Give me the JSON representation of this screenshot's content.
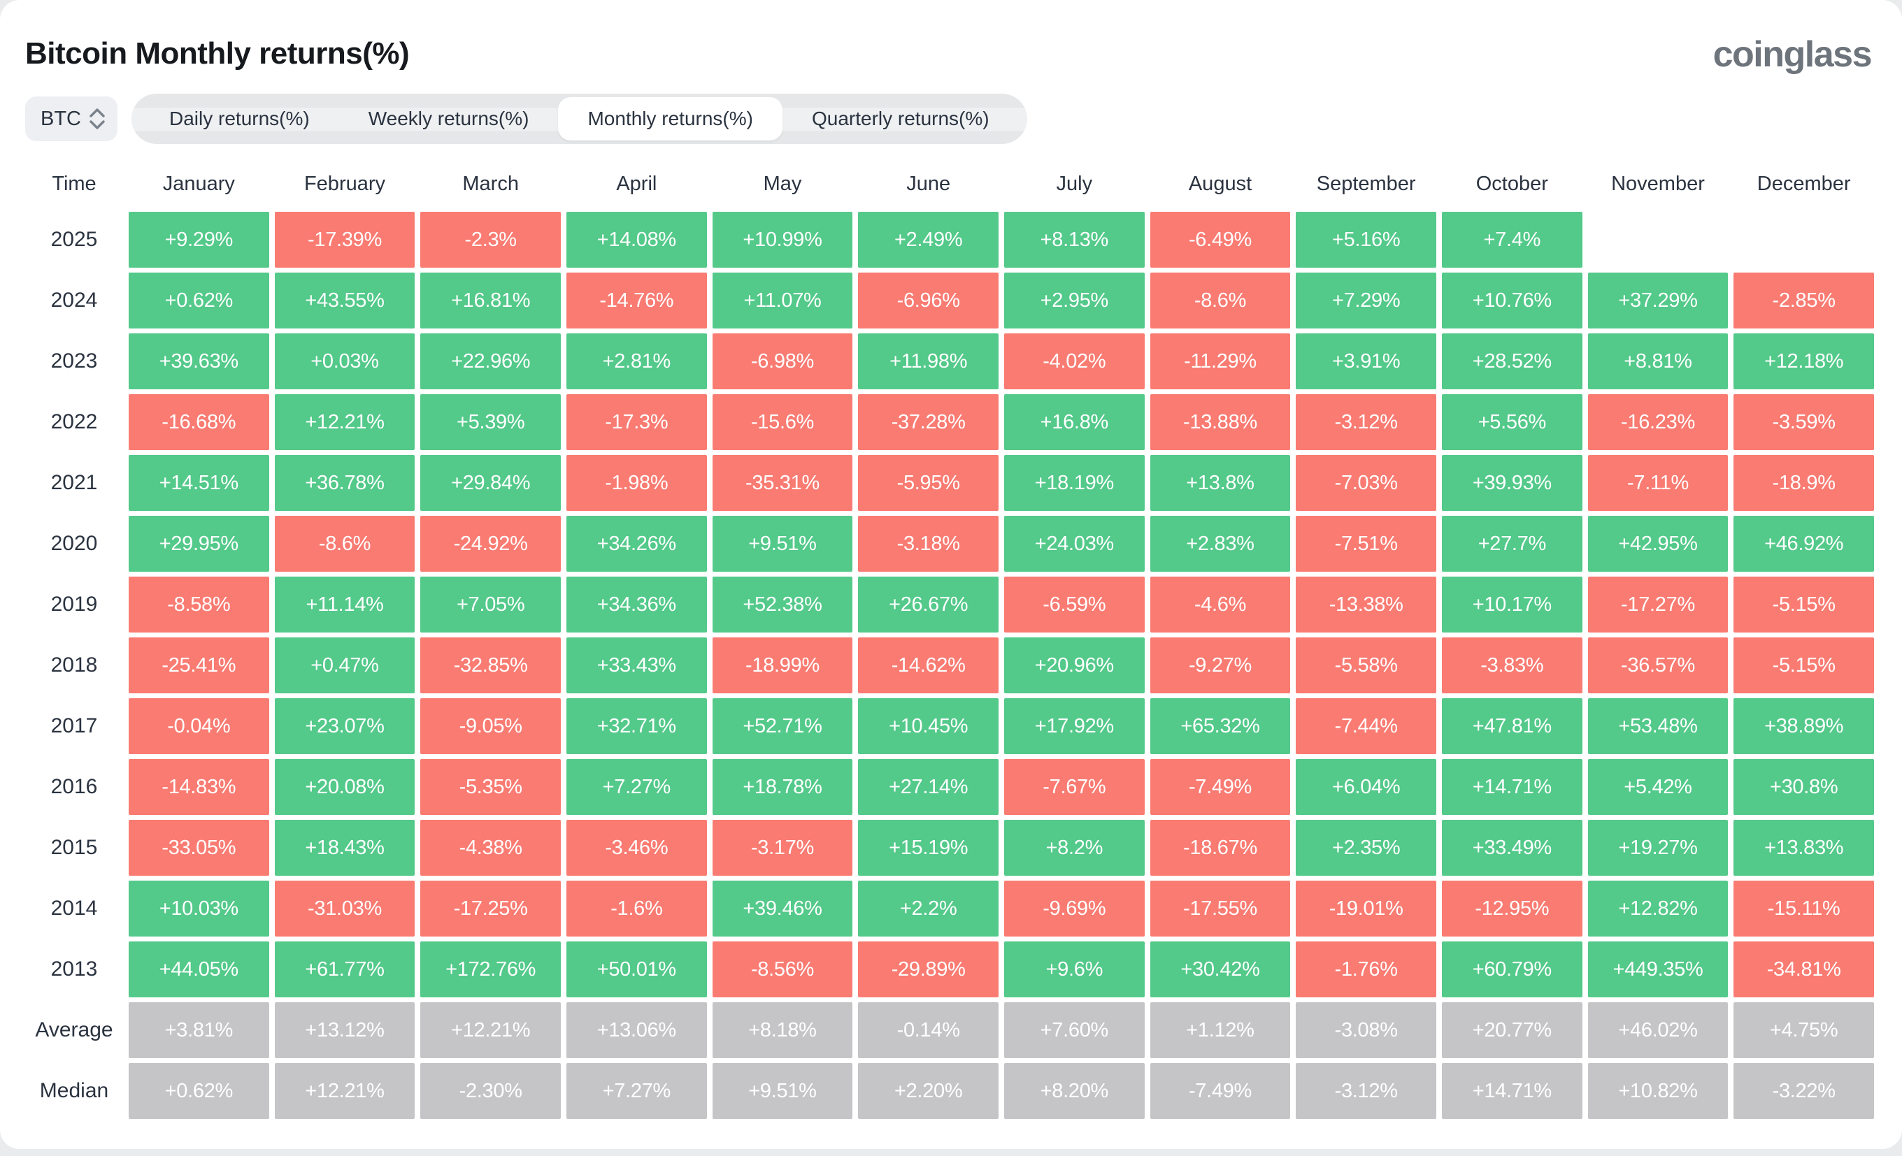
{
  "header": {
    "title": "Bitcoin Monthly returns(%)",
    "logo": "coinglass"
  },
  "controls": {
    "coin": "BTC",
    "tabs": [
      {
        "label": "Daily returns(%)",
        "active": false
      },
      {
        "label": "Weekly returns(%)",
        "active": false
      },
      {
        "label": "Monthly returns(%)",
        "active": true
      },
      {
        "label": "Quarterly returns(%)",
        "active": false
      }
    ]
  },
  "colors": {
    "positive": "#53c98a",
    "negative": "#f97b72",
    "neutral": "#c5c5c7"
  },
  "table": {
    "time_header": "Time",
    "months": [
      "January",
      "February",
      "March",
      "April",
      "May",
      "June",
      "July",
      "August",
      "September",
      "October",
      "November",
      "December"
    ],
    "rows": [
      {
        "label": "2025",
        "cells": [
          [
            "+9.29%",
            "p"
          ],
          [
            "-17.39%",
            "n"
          ],
          [
            "-2.3%",
            "n"
          ],
          [
            "+14.08%",
            "p"
          ],
          [
            "+10.99%",
            "p"
          ],
          [
            "+2.49%",
            "p"
          ],
          [
            "+8.13%",
            "p"
          ],
          [
            "-6.49%",
            "n"
          ],
          [
            "+5.16%",
            "p"
          ],
          [
            "+7.4%",
            "p"
          ],
          [
            "",
            "e"
          ],
          [
            "",
            "e"
          ]
        ]
      },
      {
        "label": "2024",
        "cells": [
          [
            "+0.62%",
            "p"
          ],
          [
            "+43.55%",
            "p"
          ],
          [
            "+16.81%",
            "p"
          ],
          [
            "-14.76%",
            "n"
          ],
          [
            "+11.07%",
            "p"
          ],
          [
            "-6.96%",
            "n"
          ],
          [
            "+2.95%",
            "p"
          ],
          [
            "-8.6%",
            "n"
          ],
          [
            "+7.29%",
            "p"
          ],
          [
            "+10.76%",
            "p"
          ],
          [
            "+37.29%",
            "p"
          ],
          [
            "-2.85%",
            "n"
          ]
        ]
      },
      {
        "label": "2023",
        "cells": [
          [
            "+39.63%",
            "p"
          ],
          [
            "+0.03%",
            "p"
          ],
          [
            "+22.96%",
            "p"
          ],
          [
            "+2.81%",
            "p"
          ],
          [
            "-6.98%",
            "n"
          ],
          [
            "+11.98%",
            "p"
          ],
          [
            "-4.02%",
            "n"
          ],
          [
            "-11.29%",
            "n"
          ],
          [
            "+3.91%",
            "p"
          ],
          [
            "+28.52%",
            "p"
          ],
          [
            "+8.81%",
            "p"
          ],
          [
            "+12.18%",
            "p"
          ]
        ]
      },
      {
        "label": "2022",
        "cells": [
          [
            "-16.68%",
            "n"
          ],
          [
            "+12.21%",
            "p"
          ],
          [
            "+5.39%",
            "p"
          ],
          [
            "-17.3%",
            "n"
          ],
          [
            "-15.6%",
            "n"
          ],
          [
            "-37.28%",
            "n"
          ],
          [
            "+16.8%",
            "p"
          ],
          [
            "-13.88%",
            "n"
          ],
          [
            "-3.12%",
            "n"
          ],
          [
            "+5.56%",
            "p"
          ],
          [
            "-16.23%",
            "n"
          ],
          [
            "-3.59%",
            "n"
          ]
        ]
      },
      {
        "label": "2021",
        "cells": [
          [
            "+14.51%",
            "p"
          ],
          [
            "+36.78%",
            "p"
          ],
          [
            "+29.84%",
            "p"
          ],
          [
            "-1.98%",
            "n"
          ],
          [
            "-35.31%",
            "n"
          ],
          [
            "-5.95%",
            "n"
          ],
          [
            "+18.19%",
            "p"
          ],
          [
            "+13.8%",
            "p"
          ],
          [
            "-7.03%",
            "n"
          ],
          [
            "+39.93%",
            "p"
          ],
          [
            "-7.11%",
            "n"
          ],
          [
            "-18.9%",
            "n"
          ]
        ]
      },
      {
        "label": "2020",
        "cells": [
          [
            "+29.95%",
            "p"
          ],
          [
            "-8.6%",
            "n"
          ],
          [
            "-24.92%",
            "n"
          ],
          [
            "+34.26%",
            "p"
          ],
          [
            "+9.51%",
            "p"
          ],
          [
            "-3.18%",
            "n"
          ],
          [
            "+24.03%",
            "p"
          ],
          [
            "+2.83%",
            "p"
          ],
          [
            "-7.51%",
            "n"
          ],
          [
            "+27.7%",
            "p"
          ],
          [
            "+42.95%",
            "p"
          ],
          [
            "+46.92%",
            "p"
          ]
        ]
      },
      {
        "label": "2019",
        "cells": [
          [
            "-8.58%",
            "n"
          ],
          [
            "+11.14%",
            "p"
          ],
          [
            "+7.05%",
            "p"
          ],
          [
            "+34.36%",
            "p"
          ],
          [
            "+52.38%",
            "p"
          ],
          [
            "+26.67%",
            "p"
          ],
          [
            "-6.59%",
            "n"
          ],
          [
            "-4.6%",
            "n"
          ],
          [
            "-13.38%",
            "n"
          ],
          [
            "+10.17%",
            "p"
          ],
          [
            "-17.27%",
            "n"
          ],
          [
            "-5.15%",
            "n"
          ]
        ]
      },
      {
        "label": "2018",
        "cells": [
          [
            "-25.41%",
            "n"
          ],
          [
            "+0.47%",
            "p"
          ],
          [
            "-32.85%",
            "n"
          ],
          [
            "+33.43%",
            "p"
          ],
          [
            "-18.99%",
            "n"
          ],
          [
            "-14.62%",
            "n"
          ],
          [
            "+20.96%",
            "p"
          ],
          [
            "-9.27%",
            "n"
          ],
          [
            "-5.58%",
            "n"
          ],
          [
            "-3.83%",
            "n"
          ],
          [
            "-36.57%",
            "n"
          ],
          [
            "-5.15%",
            "n"
          ]
        ]
      },
      {
        "label": "2017",
        "cells": [
          [
            "-0.04%",
            "n"
          ],
          [
            "+23.07%",
            "p"
          ],
          [
            "-9.05%",
            "n"
          ],
          [
            "+32.71%",
            "p"
          ],
          [
            "+52.71%",
            "p"
          ],
          [
            "+10.45%",
            "p"
          ],
          [
            "+17.92%",
            "p"
          ],
          [
            "+65.32%",
            "p"
          ],
          [
            "-7.44%",
            "n"
          ],
          [
            "+47.81%",
            "p"
          ],
          [
            "+53.48%",
            "p"
          ],
          [
            "+38.89%",
            "p"
          ]
        ]
      },
      {
        "label": "2016",
        "cells": [
          [
            "-14.83%",
            "n"
          ],
          [
            "+20.08%",
            "p"
          ],
          [
            "-5.35%",
            "n"
          ],
          [
            "+7.27%",
            "p"
          ],
          [
            "+18.78%",
            "p"
          ],
          [
            "+27.14%",
            "p"
          ],
          [
            "-7.67%",
            "n"
          ],
          [
            "-7.49%",
            "n"
          ],
          [
            "+6.04%",
            "p"
          ],
          [
            "+14.71%",
            "p"
          ],
          [
            "+5.42%",
            "p"
          ],
          [
            "+30.8%",
            "p"
          ]
        ]
      },
      {
        "label": "2015",
        "cells": [
          [
            "-33.05%",
            "n"
          ],
          [
            "+18.43%",
            "p"
          ],
          [
            "-4.38%",
            "n"
          ],
          [
            "-3.46%",
            "n"
          ],
          [
            "-3.17%",
            "n"
          ],
          [
            "+15.19%",
            "p"
          ],
          [
            "+8.2%",
            "p"
          ],
          [
            "-18.67%",
            "n"
          ],
          [
            "+2.35%",
            "p"
          ],
          [
            "+33.49%",
            "p"
          ],
          [
            "+19.27%",
            "p"
          ],
          [
            "+13.83%",
            "p"
          ]
        ]
      },
      {
        "label": "2014",
        "cells": [
          [
            "+10.03%",
            "p"
          ],
          [
            "-31.03%",
            "n"
          ],
          [
            "-17.25%",
            "n"
          ],
          [
            "-1.6%",
            "n"
          ],
          [
            "+39.46%",
            "p"
          ],
          [
            "+2.2%",
            "p"
          ],
          [
            "-9.69%",
            "n"
          ],
          [
            "-17.55%",
            "n"
          ],
          [
            "-19.01%",
            "n"
          ],
          [
            "-12.95%",
            "n"
          ],
          [
            "+12.82%",
            "p"
          ],
          [
            "-15.11%",
            "n"
          ]
        ]
      },
      {
        "label": "2013",
        "cells": [
          [
            "+44.05%",
            "p"
          ],
          [
            "+61.77%",
            "p"
          ],
          [
            "+172.76%",
            "p"
          ],
          [
            "+50.01%",
            "p"
          ],
          [
            "-8.56%",
            "n"
          ],
          [
            "-29.89%",
            "n"
          ],
          [
            "+9.6%",
            "p"
          ],
          [
            "+30.42%",
            "p"
          ],
          [
            "-1.76%",
            "n"
          ],
          [
            "+60.79%",
            "p"
          ],
          [
            "+449.35%",
            "p"
          ],
          [
            "-34.81%",
            "n"
          ]
        ]
      },
      {
        "label": "Average",
        "cells": [
          [
            "+3.81%",
            "u"
          ],
          [
            "+13.12%",
            "u"
          ],
          [
            "+12.21%",
            "u"
          ],
          [
            "+13.06%",
            "u"
          ],
          [
            "+8.18%",
            "u"
          ],
          [
            "-0.14%",
            "u"
          ],
          [
            "+7.60%",
            "u"
          ],
          [
            "+1.12%",
            "u"
          ],
          [
            "-3.08%",
            "u"
          ],
          [
            "+20.77%",
            "u"
          ],
          [
            "+46.02%",
            "u"
          ],
          [
            "+4.75%",
            "u"
          ]
        ]
      },
      {
        "label": "Median",
        "cells": [
          [
            "+0.62%",
            "u"
          ],
          [
            "+12.21%",
            "u"
          ],
          [
            "-2.30%",
            "u"
          ],
          [
            "+7.27%",
            "u"
          ],
          [
            "+9.51%",
            "u"
          ],
          [
            "+2.20%",
            "u"
          ],
          [
            "+8.20%",
            "u"
          ],
          [
            "-7.49%",
            "u"
          ],
          [
            "-3.12%",
            "u"
          ],
          [
            "+14.71%",
            "u"
          ],
          [
            "+10.82%",
            "u"
          ],
          [
            "-3.22%",
            "u"
          ]
        ]
      }
    ]
  },
  "chart_data": {
    "type": "heatmap",
    "title": "Bitcoin Monthly returns(%)",
    "x_categories": [
      "January",
      "February",
      "March",
      "April",
      "May",
      "June",
      "July",
      "August",
      "September",
      "October",
      "November",
      "December"
    ],
    "y_categories": [
      "2025",
      "2024",
      "2023",
      "2022",
      "2021",
      "2020",
      "2019",
      "2018",
      "2017",
      "2016",
      "2015",
      "2014",
      "2013",
      "Average",
      "Median"
    ],
    "series": [
      {
        "name": "2025",
        "values": [
          9.29,
          -17.39,
          -2.3,
          14.08,
          10.99,
          2.49,
          8.13,
          -6.49,
          5.16,
          7.4,
          null,
          null
        ]
      },
      {
        "name": "2024",
        "values": [
          0.62,
          43.55,
          16.81,
          -14.76,
          11.07,
          -6.96,
          2.95,
          -8.6,
          7.29,
          10.76,
          37.29,
          -2.85
        ]
      },
      {
        "name": "2023",
        "values": [
          39.63,
          0.03,
          22.96,
          2.81,
          -6.98,
          11.98,
          -4.02,
          -11.29,
          3.91,
          28.52,
          8.81,
          12.18
        ]
      },
      {
        "name": "2022",
        "values": [
          -16.68,
          12.21,
          5.39,
          -17.3,
          -15.6,
          -37.28,
          16.8,
          -13.88,
          -3.12,
          5.56,
          -16.23,
          -3.59
        ]
      },
      {
        "name": "2021",
        "values": [
          14.51,
          36.78,
          29.84,
          -1.98,
          -35.31,
          -5.95,
          18.19,
          13.8,
          -7.03,
          39.93,
          -7.11,
          -18.9
        ]
      },
      {
        "name": "2020",
        "values": [
          29.95,
          -8.6,
          -24.92,
          34.26,
          9.51,
          -3.18,
          24.03,
          2.83,
          -7.51,
          27.7,
          42.95,
          46.92
        ]
      },
      {
        "name": "2019",
        "values": [
          -8.58,
          11.14,
          7.05,
          34.36,
          52.38,
          26.67,
          -6.59,
          -4.6,
          -13.38,
          10.17,
          -17.27,
          -5.15
        ]
      },
      {
        "name": "2018",
        "values": [
          -25.41,
          0.47,
          -32.85,
          33.43,
          -18.99,
          -14.62,
          20.96,
          -9.27,
          -5.58,
          -3.83,
          -36.57,
          -5.15
        ]
      },
      {
        "name": "2017",
        "values": [
          -0.04,
          23.07,
          -9.05,
          32.71,
          52.71,
          10.45,
          17.92,
          65.32,
          -7.44,
          47.81,
          53.48,
          38.89
        ]
      },
      {
        "name": "2016",
        "values": [
          -14.83,
          20.08,
          -5.35,
          7.27,
          18.78,
          27.14,
          -7.67,
          -7.49,
          6.04,
          14.71,
          5.42,
          30.8
        ]
      },
      {
        "name": "2015",
        "values": [
          -33.05,
          18.43,
          -4.38,
          -3.46,
          -3.17,
          15.19,
          8.2,
          -18.67,
          2.35,
          33.49,
          19.27,
          13.83
        ]
      },
      {
        "name": "2014",
        "values": [
          10.03,
          -31.03,
          -17.25,
          -1.6,
          39.46,
          2.2,
          -9.69,
          -17.55,
          -19.01,
          -12.95,
          12.82,
          -15.11
        ]
      },
      {
        "name": "2013",
        "values": [
          44.05,
          61.77,
          172.76,
          50.01,
          -8.56,
          -29.89,
          9.6,
          30.42,
          -1.76,
          60.79,
          449.35,
          -34.81
        ]
      },
      {
        "name": "Average",
        "values": [
          3.81,
          13.12,
          12.21,
          13.06,
          8.18,
          -0.14,
          7.6,
          1.12,
          -3.08,
          20.77,
          46.02,
          4.75
        ]
      },
      {
        "name": "Median",
        "values": [
          0.62,
          12.21,
          -2.3,
          7.27,
          9.51,
          2.2,
          8.2,
          -7.49,
          -3.12,
          14.71,
          10.82,
          -3.22
        ]
      }
    ],
    "legend": "green = positive month, red = negative month, gray = summary rows",
    "grid": false
  }
}
